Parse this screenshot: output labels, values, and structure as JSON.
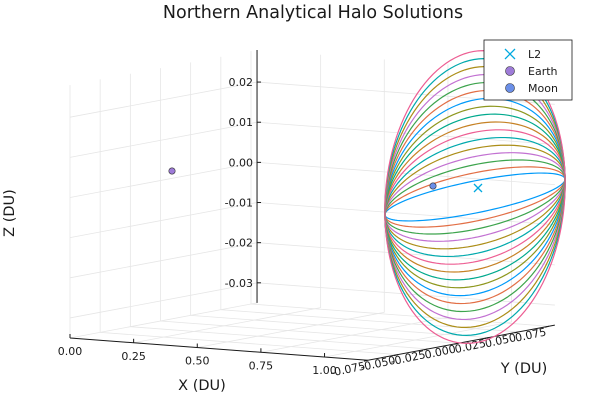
{
  "chart_data": {
    "type": "line",
    "projection": "3d",
    "title": "Northern Analytical Halo Solutions",
    "xlabel": "X (DU)",
    "ylabel": "Y (DU)",
    "zlabel": "Z (DU)",
    "xlim": [
      -0.03,
      1.2
    ],
    "ylim": [
      -0.08,
      0.08
    ],
    "zlim": [
      -0.035,
      0.028
    ],
    "xticks": [
      "0.00",
      "0.25",
      "0.50",
      "0.75",
      "1.00"
    ],
    "yticks": [
      "-0.075",
      "-0.050",
      "-0.025",
      "0.000",
      "0.025",
      "0.050",
      "0.075"
    ],
    "zticks": [
      "-0.03",
      "-0.02",
      "-0.01",
      "0.00",
      "0.01",
      "0.02"
    ],
    "grid": true,
    "legend_position": "top-right",
    "markers": [
      {
        "name": "L2",
        "symbol": "x",
        "color": "#00a9e0",
        "x": 1.1557,
        "y": 0.0,
        "z": 0.0
      },
      {
        "name": "Earth",
        "symbol": "circle",
        "color": "#9e7bd8",
        "x": 0.0,
        "y": 0.0,
        "z": 0.0
      },
      {
        "name": "Moon",
        "symbol": "circle",
        "color": "#6b8fe8",
        "x": 0.9878,
        "y": 0.0,
        "z": 0.0
      }
    ],
    "orbits": {
      "center_x": 1.1557,
      "x_amplitude": 0.025,
      "y_amplitude": 0.078,
      "colors": [
        "#009af9",
        "#e26f46",
        "#3da44d",
        "#c271d2",
        "#ac8e18",
        "#00a9ad",
        "#ed5e93",
        "#c68225",
        "#00a98d",
        "#8e971e",
        "#009af9",
        "#e26f46",
        "#3da44d",
        "#c271d2",
        "#ac8e18",
        "#00a9ad",
        "#ed5e93"
      ],
      "z_amplitudes": [
        0.004,
        0.006,
        0.008,
        0.01,
        0.012,
        0.014,
        0.016,
        0.018,
        0.02,
        0.022,
        0.024,
        0.026,
        0.028,
        0.03,
        0.032,
        0.034,
        0.036
      ]
    }
  }
}
